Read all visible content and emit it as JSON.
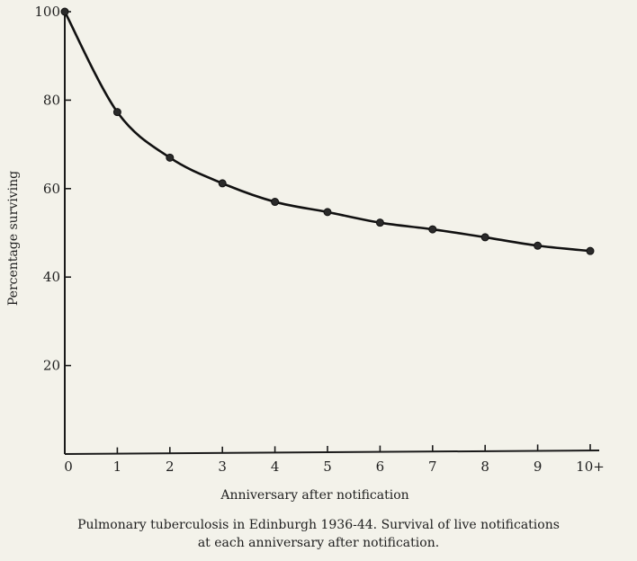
{
  "chart_data": {
    "type": "line",
    "title": "",
    "xlabel": "Anniversary after notification",
    "ylabel": "Percentage surviving",
    "x": [
      0,
      1,
      2,
      3,
      4,
      5,
      6,
      7,
      8,
      9,
      10
    ],
    "x_tick_labels": [
      "0",
      "1",
      "2",
      "3",
      "4",
      "5",
      "6",
      "7",
      "8",
      "9",
      "10+"
    ],
    "y_ticks": [
      20,
      40,
      60,
      80,
      100
    ],
    "y_tick_labels": [
      "20",
      "40",
      "60",
      "80",
      "100"
    ],
    "xlim": [
      0,
      10
    ],
    "ylim": [
      0,
      100
    ],
    "grid": false,
    "legend": "none",
    "series": [
      {
        "values": [
          100,
          77.3,
          67,
          61.2,
          57,
          54.7,
          52.3,
          50.8,
          49,
          47.1,
          45.9
        ]
      }
    ]
  },
  "caption": {
    "line1": "Pulmonary tuberculosis in Edinburgh 1936-44.   Survival of live notifications",
    "line2": "at each anniversary after notification."
  }
}
